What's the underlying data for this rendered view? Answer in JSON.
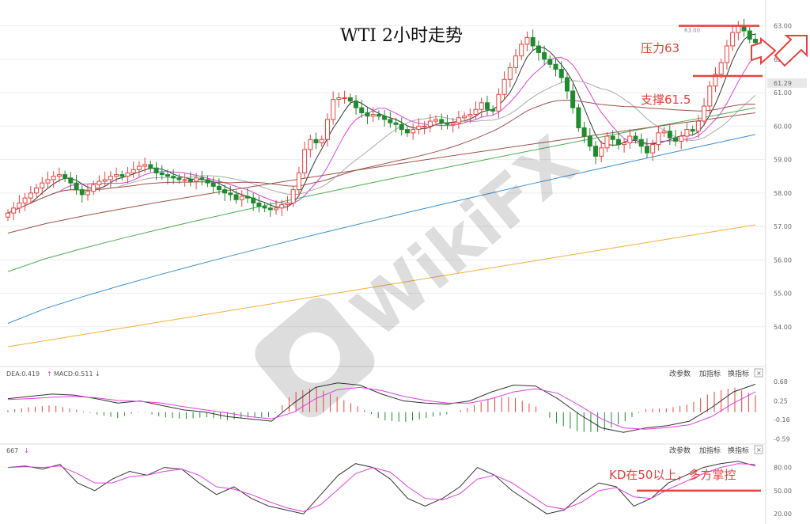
{
  "title": "WTI 2小时走势",
  "annotations": {
    "resistance": "压力63",
    "support": "支撑61.5",
    "kd_note": "KD在50以上，多方掌控",
    "price_high_tag": "63.00",
    "price_tag": "61.29"
  },
  "watermark": "WikiFX",
  "colors": {
    "up": "#e8413c",
    "down": "#1f8a2e",
    "ma_black": "#333333",
    "ma_magenta": "#e040e0",
    "ma_gray": "#aaaaaa",
    "ma_brown": "#a0524a",
    "ma_green": "#4caf50",
    "ma_blue": "#3a8fd8",
    "ma_orange": "#f3b03c",
    "annotation": "#e8413c"
  },
  "macd_panel": {
    "label_dea": "DEA:0.419",
    "label_macd": "MACD:0.511",
    "buttons": [
      "改参数",
      "加指标",
      "换指标"
    ],
    "close_icon": "close-icon"
  },
  "kd_panel": {
    "label": "667",
    "buttons": [
      "改参数",
      "加指标",
      "换指标"
    ],
    "close_icon": "close-icon"
  },
  "chart_data": [
    {
      "type": "candlestick",
      "title": "WTI 2小时走势",
      "ylim": [
        53.0,
        63.3
      ],
      "yticks": [
        {
          "v": 63.0,
          "label": "63.00"
        },
        {
          "v": 62.0,
          "label": "62.00"
        },
        {
          "v": 61.0,
          "label": "61.00"
        },
        {
          "v": 60.0,
          "label": "60.00"
        },
        {
          "v": 59.0,
          "label": "59.00"
        },
        {
          "v": 58.0,
          "label": "58.00"
        },
        {
          "v": 57.0,
          "label": "57.00"
        },
        {
          "v": 56.0,
          "label": "56.00"
        },
        {
          "v": 55.0,
          "label": "55.00"
        },
        {
          "v": 54.0,
          "label": "54.00"
        }
      ],
      "levels": [
        {
          "name": "resistance",
          "value": 63.0
        },
        {
          "name": "support",
          "value": 61.5
        }
      ],
      "close": [
        57.4,
        57.55,
        57.7,
        57.85,
        58.0,
        58.15,
        58.3,
        58.4,
        58.5,
        58.55,
        58.45,
        58.3,
        58.1,
        57.95,
        58.05,
        58.25,
        58.35,
        58.4,
        58.5,
        58.55,
        58.5,
        58.6,
        58.7,
        58.8,
        58.85,
        58.75,
        58.6,
        58.55,
        58.5,
        58.45,
        58.4,
        58.4,
        58.35,
        58.45,
        58.4,
        58.3,
        58.2,
        58.1,
        58.0,
        57.95,
        57.8,
        57.9,
        57.85,
        57.7,
        57.6,
        57.55,
        57.5,
        57.55,
        57.65,
        57.7,
        58.1,
        58.6,
        59.3,
        59.6,
        59.5,
        59.6,
        60.2,
        60.8,
        60.85,
        60.85,
        60.75,
        60.55,
        60.4,
        60.3,
        60.35,
        60.3,
        60.2,
        60.1,
        60.05,
        59.9,
        59.8,
        59.9,
        60.0,
        60.0,
        60.15,
        60.2,
        60.1,
        60.05,
        60.1,
        60.25,
        60.3,
        60.35,
        60.5,
        60.7,
        60.5,
        60.45,
        60.95,
        61.4,
        61.75,
        62.1,
        62.45,
        62.65,
        62.4,
        62.2,
        62.0,
        61.85,
        61.7,
        61.45,
        61.05,
        60.55,
        59.95,
        59.7,
        59.4,
        59.1,
        59.35,
        59.7,
        59.6,
        59.45,
        59.5,
        59.7,
        59.6,
        59.4,
        59.2,
        59.45,
        59.8,
        59.85,
        59.65,
        59.55,
        59.7,
        59.9,
        59.85,
        60.15,
        60.6,
        61.2,
        61.55,
        61.9,
        62.4,
        62.8,
        63.0,
        62.85,
        62.6,
        62.5
      ],
      "ma": [
        {
          "key": "ma_orange",
          "values": [
            53.4,
            57.05
          ]
        },
        {
          "key": "ma_blue",
          "values": [
            54.1,
            59.75
          ]
        },
        {
          "key": "ma_green",
          "values": [
            55.65,
            60.55
          ]
        },
        {
          "key": "ma_brown",
          "values": [
            56.8,
            60.4
          ]
        }
      ]
    },
    {
      "type": "line",
      "title": "MACD",
      "ylim": [
        -0.62,
        0.75
      ],
      "yticks": [
        {
          "v": 0.68,
          "label": "0.68"
        },
        {
          "v": 0.25,
          "label": "0.25"
        },
        {
          "v": -0.16,
          "label": "-0.16"
        },
        {
          "v": -0.59,
          "label": "-0.59"
        }
      ],
      "series": [
        {
          "key": "ma_black",
          "values": [
            0.3,
            0.35,
            0.4,
            0.38,
            0.3,
            0.2,
            0.25,
            0.15,
            0.05,
            0.0,
            -0.1,
            -0.15,
            -0.2,
            0.2,
            0.55,
            0.65,
            0.6,
            0.4,
            0.25,
            0.2,
            0.18,
            0.25,
            0.45,
            0.6,
            0.58,
            0.3,
            -0.05,
            -0.35,
            -0.45,
            -0.35,
            -0.3,
            -0.2,
            0.1,
            0.45,
            0.62
          ]
        },
        {
          "key": "ma_magenta",
          "values": [
            0.28,
            0.3,
            0.33,
            0.35,
            0.32,
            0.26,
            0.24,
            0.2,
            0.12,
            0.05,
            -0.02,
            -0.1,
            -0.15,
            0.0,
            0.3,
            0.5,
            0.55,
            0.48,
            0.35,
            0.26,
            0.2,
            0.2,
            0.3,
            0.45,
            0.52,
            0.42,
            0.15,
            -0.15,
            -0.35,
            -0.38,
            -0.34,
            -0.28,
            -0.1,
            0.2,
            0.45
          ]
        }
      ]
    },
    {
      "type": "line",
      "title": "KD",
      "ylim": [
        12,
        96
      ],
      "yticks": [
        {
          "v": 80,
          "label": "80.00"
        },
        {
          "v": 50,
          "label": "50.00"
        },
        {
          "v": 20,
          "label": "20.00"
        }
      ],
      "levels": [
        {
          "name": "kd_50",
          "value": 50
        }
      ],
      "series": [
        {
          "key": "ma_black",
          "values": [
            80,
            82,
            78,
            84,
            60,
            50,
            65,
            75,
            70,
            80,
            78,
            60,
            45,
            55,
            40,
            30,
            25,
            20,
            45,
            70,
            85,
            80,
            65,
            40,
            30,
            40,
            55,
            80,
            70,
            50,
            35,
            20,
            25,
            45,
            60,
            55,
            30,
            40,
            60,
            70,
            80,
            85,
            88,
            82
          ]
        },
        {
          "key": "ma_magenta",
          "values": [
            80,
            81,
            80,
            82,
            72,
            60,
            60,
            68,
            70,
            75,
            78,
            70,
            55,
            52,
            45,
            36,
            28,
            23,
            32,
            52,
            72,
            80,
            74,
            55,
            40,
            38,
            46,
            65,
            70,
            60,
            45,
            30,
            26,
            35,
            50,
            54,
            42,
            40,
            52,
            62,
            72,
            80,
            85,
            84
          ]
        }
      ]
    }
  ]
}
